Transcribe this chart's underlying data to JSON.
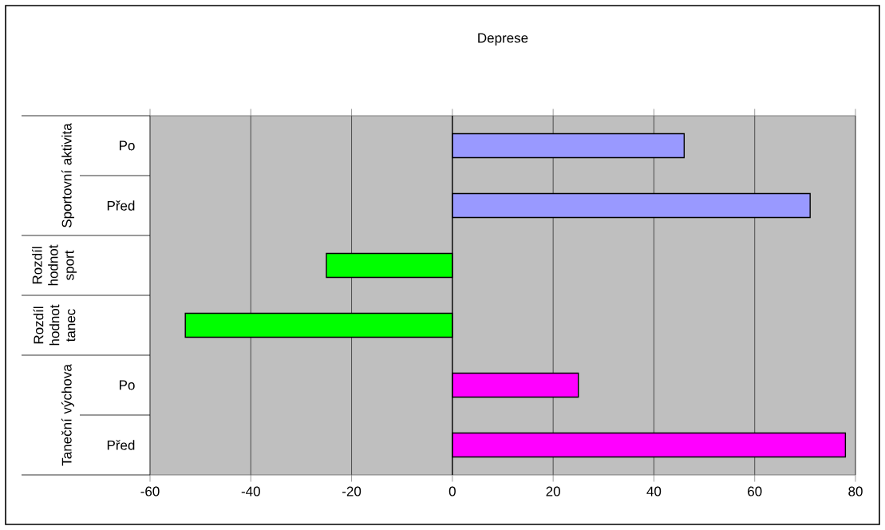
{
  "chart_data": {
    "type": "bar",
    "orientation": "horizontal",
    "title": "Deprese",
    "categories": [
      "Po",
      "Před",
      null,
      null,
      "Po",
      "Před"
    ],
    "values": [
      46,
      71,
      -25,
      -53,
      25,
      78
    ],
    "colors": [
      "#9999ff",
      "#9999ff",
      "#00ff00",
      "#00ff00",
      "#ff00ff",
      "#ff00ff"
    ],
    "xlim": [
      -60,
      80
    ],
    "xticks": [
      -60,
      -40,
      -20,
      0,
      20,
      40,
      60,
      80
    ],
    "grid": "x",
    "annotations": [
      "Sportovní aktivita",
      "Rozdíl hodnot sport",
      "Rozdíl hodnot tanec",
      "Taneční výchova"
    ]
  }
}
